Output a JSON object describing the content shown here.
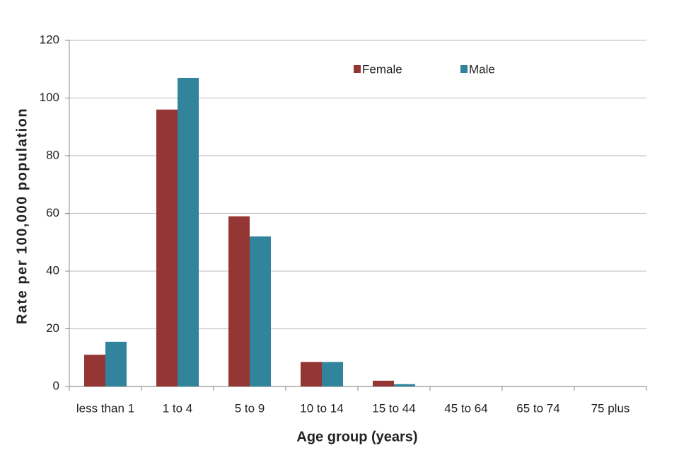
{
  "chart_data": {
    "type": "bar",
    "categories": [
      "less than 1",
      "1 to 4",
      "5 to 9",
      "10 to 14",
      "15 to 44",
      "45 to 64",
      "65 to 74",
      "75 plus"
    ],
    "series": [
      {
        "name": "Female",
        "color": "#943634",
        "values": [
          11,
          96,
          59,
          8.5,
          2,
          0,
          0,
          0
        ]
      },
      {
        "name": "Male",
        "color": "#31849b",
        "values": [
          15.5,
          107,
          52,
          8.5,
          0.8,
          0,
          0,
          0
        ]
      }
    ],
    "xlabel": "Age group (years)",
    "ylabel": "Rate per 100,000  population",
    "ylim": [
      0,
      120
    ],
    "yticks": [
      0,
      20,
      40,
      60,
      80,
      100,
      120
    ],
    "grid": true,
    "legend": "top"
  }
}
